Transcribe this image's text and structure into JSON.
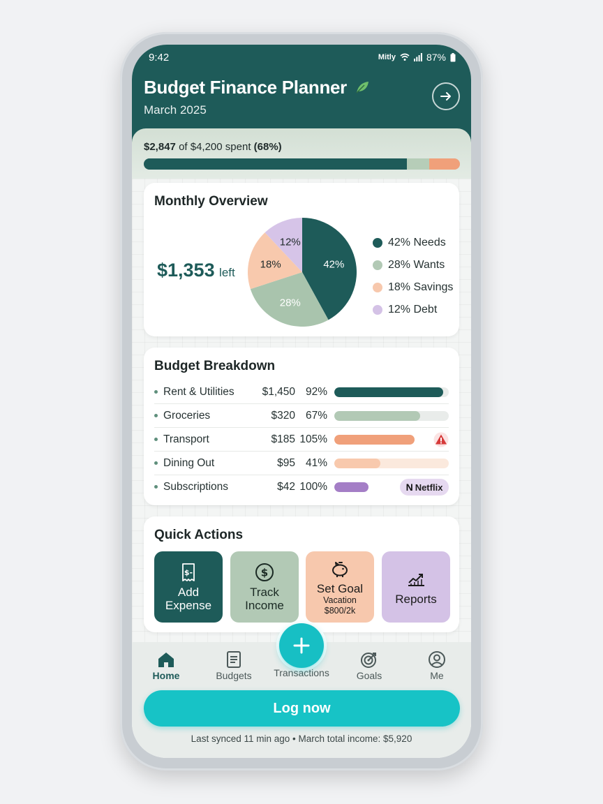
{
  "status": {
    "time": "9:42",
    "carrier": "Mitly",
    "battery": "87%"
  },
  "header": {
    "title": "Budget Finance Planner",
    "leaf_icon": "leaf-icon",
    "subtitle": "March 2025"
  },
  "spending": {
    "spent": "$2,847",
    "of_text": "of $4,200 spent",
    "percent_text": "(68%)",
    "progress": 0.68
  },
  "overview": {
    "title": "Monthly Overview",
    "left_amount": "$1,353",
    "left_label": "left",
    "legend": [
      {
        "label": "42% Needs",
        "color": "#1e5b59"
      },
      {
        "label": "28% Wants",
        "color": "#b2c9b5"
      },
      {
        "label": "18% Savings",
        "color": "#f7c8ad"
      },
      {
        "label": "12% Debt",
        "color": "#d4c2e6"
      }
    ]
  },
  "chart_data": {
    "type": "pie",
    "categories": [
      "Needs",
      "Wants",
      "Savings",
      "Debt"
    ],
    "values": [
      42,
      28,
      18,
      12
    ],
    "labels": [
      "42%",
      "28%",
      "18%",
      "12%"
    ],
    "colors": [
      "#1e5b59",
      "#a9c4ad",
      "#f8c9ad",
      "#d6c4e8"
    ]
  },
  "breakdown": {
    "title": "Budget Breakdown",
    "rows": [
      {
        "name": "Rent & Utilities",
        "amount": "$1,450",
        "pct": "92%",
        "fill": 0.95,
        "color": "#1e5b59"
      },
      {
        "name": "Groceries",
        "amount": "$320",
        "pct": "67%",
        "fill": 0.75,
        "color": "#b2c9b5"
      },
      {
        "name": "Transport",
        "amount": "$185",
        "pct": "105%",
        "fill": 0.83,
        "color": "#f0a07a"
      },
      {
        "name": "Dining Out",
        "amount": "$95",
        "pct": "41%",
        "fill": 0.4,
        "color": "#f8c9ad"
      },
      {
        "name": "Subscriptions",
        "amount": "$42",
        "pct": "100%",
        "fill": 0.54,
        "color": "#a47ec6"
      }
    ],
    "netflix_label": "Netflix",
    "netflix_mark": "N"
  },
  "quick_actions": {
    "title": "Quick Actions",
    "add_expense": {
      "line1": "Add",
      "line2": "Expense",
      "icon": "receipt-dollar-icon"
    },
    "track_income": {
      "line1": "Track",
      "line2": "Income",
      "icon": "dollar-coin-icon"
    },
    "set_goal": {
      "label": "Set Goal",
      "sub1": "Vacation",
      "sub2": "$800/2k",
      "icon": "piggy-bank-icon"
    },
    "reports": {
      "label": "Reports",
      "icon": "chart-trend-icon"
    }
  },
  "nav": {
    "home": "Home",
    "budgets": "Budgets",
    "transactions": "Transactions",
    "goals": "Goals",
    "me": "Me"
  },
  "log_button": "Log now",
  "footer": "Last synced 11 min ago • March total income: $5,920"
}
